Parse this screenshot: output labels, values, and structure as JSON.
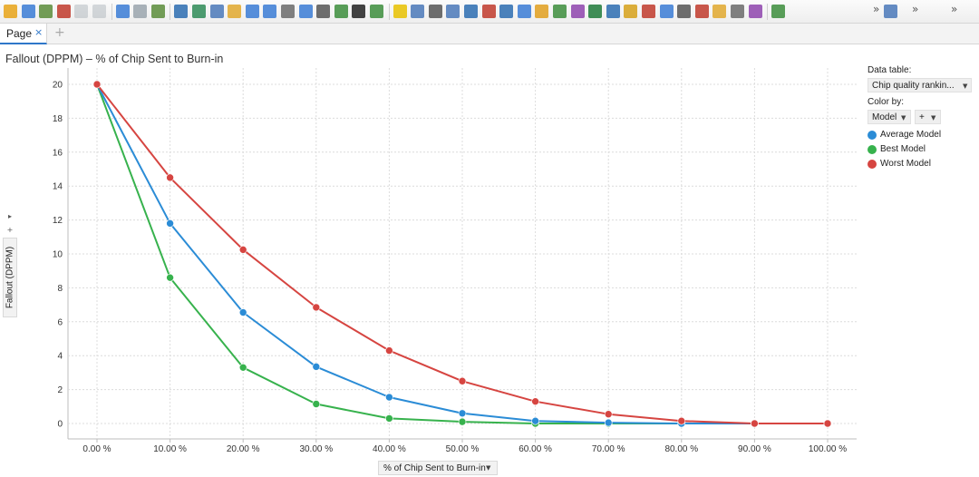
{
  "tabs": [
    {
      "label": "Page",
      "close": "×"
    }
  ],
  "new_tab": "+",
  "toolbar": {
    "more_1": "»",
    "more_2": "»",
    "more_3": "»"
  },
  "viz": {
    "title": "Fallout (DPPM) – % of Chip Sent to Burn-in",
    "y_axis_label": "Fallout (DPPM)",
    "x_axis_label": "% of Chip Sent to Burn-in",
    "side_controls": [
      "▸",
      "+",
      "▾"
    ]
  },
  "legend": {
    "data_table_label": "Data table:",
    "data_table_value": "Chip quality rankin...",
    "color_by_label": "Color by:",
    "color_by_value": "Model",
    "color_by_add": "+",
    "items": [
      {
        "label": "Average Model",
        "color": "#2b8cd6"
      },
      {
        "label": "Best Model",
        "color": "#37b24d"
      },
      {
        "label": "Worst Model",
        "color": "#d64541"
      }
    ]
  },
  "chart_data": {
    "type": "line",
    "title": "Fallout (DPPM) – % of Chip Sent to Burn-in",
    "xlabel": "% of Chip Sent to Burn-in",
    "ylabel": "Fallout (DPPM)",
    "categories": [
      "0.00 %",
      "10.00 %",
      "20.00 %",
      "30.00 %",
      "40.00 %",
      "50.00 %",
      "60.00 %",
      "70.00 %",
      "80.00 %",
      "90.00 %",
      "100.00 %"
    ],
    "yticks": [
      "0",
      "2",
      "4",
      "6",
      "8",
      "10",
      "12",
      "14",
      "16",
      "18",
      "20"
    ],
    "ylim": [
      0,
      20
    ],
    "grid": true,
    "legend_position": "right",
    "series": [
      {
        "name": "Average Model",
        "color": "#2b8cd6",
        "values": [
          20,
          11.8,
          6.55,
          3.35,
          1.55,
          0.6,
          0.15,
          0.05,
          0.0,
          0.0,
          0.0
        ]
      },
      {
        "name": "Best Model",
        "color": "#37b24d",
        "values": [
          20,
          8.6,
          3.3,
          1.15,
          0.3,
          0.1,
          0.0,
          0.0,
          0.0,
          0.0,
          0.0
        ]
      },
      {
        "name": "Worst Model",
        "color": "#d64541",
        "values": [
          20,
          14.5,
          10.25,
          6.85,
          4.3,
          2.5,
          1.3,
          0.55,
          0.15,
          0.0,
          0.0
        ]
      }
    ]
  }
}
